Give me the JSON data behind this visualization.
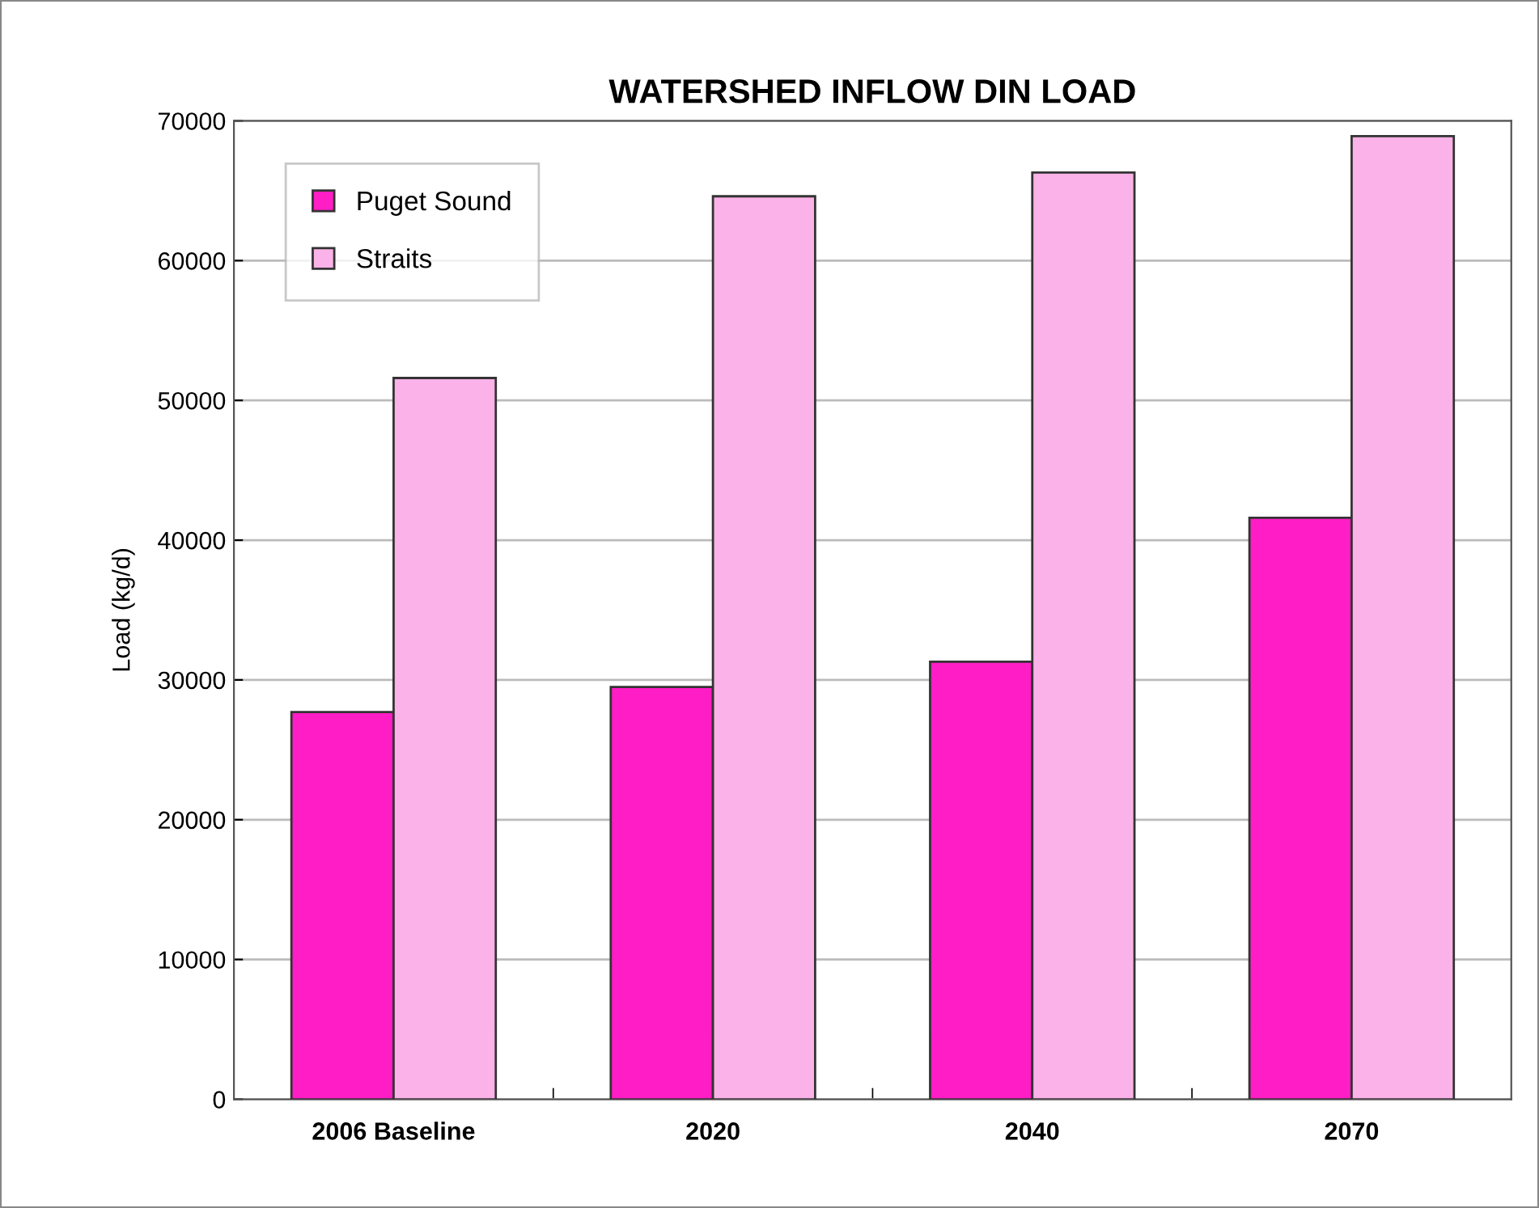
{
  "chart_data": {
    "type": "bar",
    "title": "WATERSHED INFLOW DIN LOAD",
    "ylabel": "Load (kg/d)",
    "categories": [
      "2006 Baseline",
      "2020",
      "2040",
      "2070"
    ],
    "series": [
      {
        "name": "Puget Sound",
        "color": "#ff1dc5",
        "values": [
          27700,
          29500,
          31300,
          41600
        ]
      },
      {
        "name": "Straits",
        "color": "#fbb2e8",
        "values": [
          51600,
          64600,
          66300,
          68900
        ]
      }
    ],
    "ylim": [
      0,
      70000
    ],
    "yticks": [
      0,
      10000,
      20000,
      30000,
      40000,
      50000,
      60000,
      70000
    ],
    "grid": "y",
    "legend": "top left"
  }
}
